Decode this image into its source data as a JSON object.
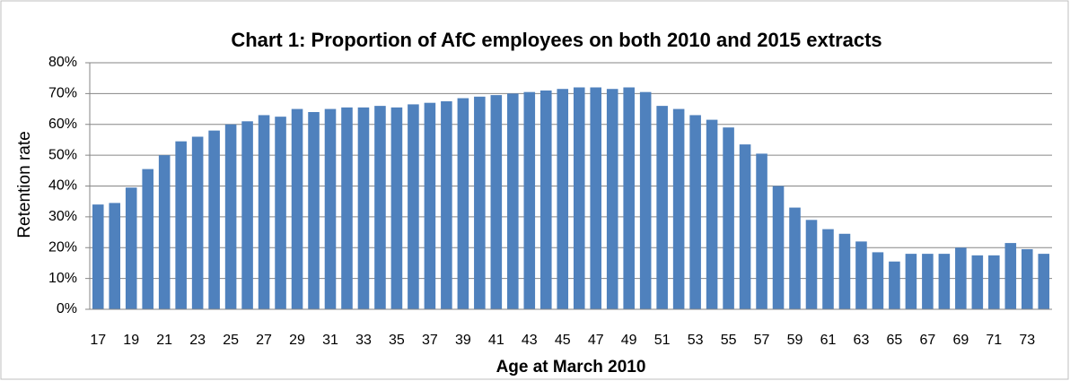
{
  "chart_data": {
    "type": "bar",
    "title": "Chart 1:  Proportion of AfC employees on both 2010 and 2015 extracts",
    "x_label": "Age at March 2010",
    "y_label": "Retention rate",
    "categories": [
      17,
      null,
      19,
      null,
      21,
      null,
      23,
      null,
      25,
      null,
      27,
      null,
      29,
      null,
      31,
      null,
      33,
      null,
      35,
      null,
      37,
      null,
      39,
      null,
      41,
      null,
      43,
      null,
      45,
      null,
      47,
      null,
      49,
      null,
      51,
      null,
      53,
      null,
      55,
      null,
      57,
      null,
      59,
      null,
      61,
      null,
      63,
      null,
      65,
      null,
      67,
      null,
      69,
      null,
      71,
      null,
      73,
      null
    ],
    "values": [
      34,
      34.5,
      39.5,
      45.5,
      50,
      54.5,
      56,
      58,
      60,
      61,
      63,
      62.5,
      65,
      64,
      65,
      65.5,
      65.5,
      66,
      65.5,
      66.5,
      67,
      67.5,
      68.5,
      69,
      69.5,
      70,
      70.5,
      71,
      71.5,
      72,
      72,
      71.5,
      72,
      70.5,
      66,
      65,
      63,
      61.5,
      59,
      53.5,
      50.5,
      40,
      33,
      29,
      26,
      24.5,
      22,
      18.5,
      15.5,
      18,
      18,
      18,
      20,
      17.5,
      17.5,
      21.5,
      19.5,
      18
    ],
    "color": "#4f81bd",
    "ylim": [
      0,
      80
    ],
    "yticks": [
      {
        "value": 0,
        "label": "0%"
      },
      {
        "value": 10,
        "label": "10%"
      },
      {
        "value": 20,
        "label": "20%"
      },
      {
        "value": 30,
        "label": "30%"
      },
      {
        "value": 40,
        "label": "40%"
      },
      {
        "value": 50,
        "label": "50%"
      },
      {
        "value": 60,
        "label": "60%"
      },
      {
        "value": 70,
        "label": "70%"
      },
      {
        "value": 80,
        "label": "80%"
      }
    ],
    "grid": true
  }
}
